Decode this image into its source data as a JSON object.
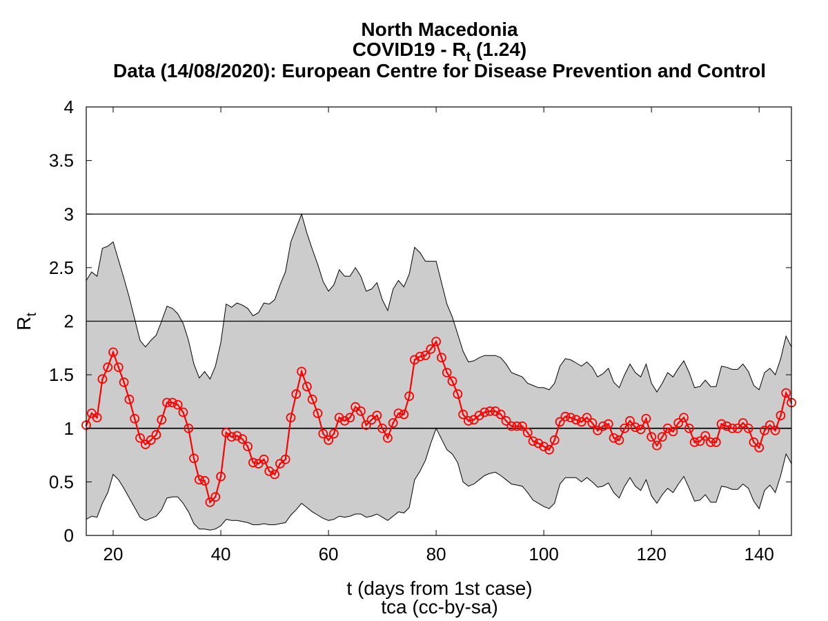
{
  "chart_data": {
    "type": "line",
    "title_lines": {
      "line1": "North Macedonia",
      "line2_prefix": "COVID19 - R",
      "line2_sub": "t",
      "line2_suffix": " (1.24)",
      "line3": "Data (14/08/2020): European Centre for Disease Prevention and Control"
    },
    "xlabel": "t (days from 1st case)",
    "ylabel_main": "R",
    "ylabel_sub": "t",
    "credit": "tca (cc-by-sa)",
    "xlim": [
      15,
      146
    ],
    "ylim": [
      0,
      4
    ],
    "xticks": [
      20,
      40,
      60,
      80,
      100,
      120,
      140
    ],
    "yticks": [
      0,
      0.5,
      1,
      1.5,
      2,
      2.5,
      3,
      3.5,
      4
    ],
    "hlines": [
      1,
      2,
      3
    ],
    "colors": {
      "series": "#ff0000",
      "band": "#cccccc",
      "axis": "#000000"
    },
    "series": [
      {
        "x": [
          15,
          16,
          17,
          18,
          19,
          20,
          21,
          22,
          23,
          24,
          25,
          26,
          27,
          28,
          29,
          30,
          31,
          32,
          33,
          34,
          35,
          36,
          37,
          38,
          39,
          40,
          41,
          42,
          43,
          44,
          45,
          46,
          47,
          48,
          49,
          50,
          51,
          52,
          53,
          54,
          55,
          56,
          57,
          58,
          59,
          60,
          61,
          62,
          63,
          64,
          65,
          66,
          67,
          68,
          69,
          70,
          71,
          72,
          73,
          74,
          75,
          76,
          77,
          78,
          79,
          80,
          81,
          82,
          83,
          84,
          85,
          86,
          87,
          88,
          89,
          90,
          91,
          92,
          93,
          94,
          95,
          96,
          97,
          98,
          99,
          100,
          101,
          102,
          103,
          104,
          105,
          106,
          107,
          108,
          109,
          110,
          111,
          112,
          113,
          114,
          115,
          116,
          117,
          118,
          119,
          120,
          121,
          122,
          123,
          124,
          125,
          126,
          127,
          128,
          129,
          130,
          131,
          132,
          133,
          134,
          135,
          136,
          137,
          138,
          139,
          140,
          141,
          142,
          143,
          144,
          145,
          146
        ],
        "y": [
          1.03,
          1.14,
          1.1,
          1.46,
          1.57,
          1.71,
          1.57,
          1.43,
          1.27,
          1.09,
          0.91,
          0.85,
          0.89,
          0.94,
          1.08,
          1.24,
          1.24,
          1.22,
          1.15,
          1.0,
          0.72,
          0.52,
          0.51,
          0.31,
          0.36,
          0.55,
          0.96,
          0.92,
          0.93,
          0.9,
          0.83,
          0.68,
          0.67,
          0.71,
          0.6,
          0.57,
          0.67,
          0.71,
          1.1,
          1.32,
          1.53,
          1.39,
          1.27,
          1.14,
          0.95,
          0.89,
          0.95,
          1.1,
          1.07,
          1.1,
          1.2,
          1.16,
          1.03,
          1.08,
          1.12,
          1.0,
          0.91,
          1.05,
          1.14,
          1.13,
          1.3,
          1.64,
          1.67,
          1.68,
          1.74,
          1.81,
          1.66,
          1.52,
          1.44,
          1.32,
          1.13,
          1.07,
          1.08,
          1.12,
          1.15,
          1.16,
          1.16,
          1.13,
          1.07,
          1.02,
          1.02,
          1.02,
          0.96,
          0.88,
          0.86,
          0.83,
          0.8,
          0.89,
          1.06,
          1.11,
          1.1,
          1.08,
          1.06,
          1.1,
          1.05,
          0.98,
          1.02,
          1.04,
          0.91,
          0.89,
          1.0,
          1.07,
          1.01,
          0.99,
          1.09,
          0.92,
          0.84,
          0.92,
          1.0,
          0.97,
          1.05,
          1.1,
          1.0,
          0.87,
          0.88,
          0.93,
          0.87,
          0.87,
          1.04,
          1.02,
          1.0,
          1.0,
          1.05,
          1.0,
          0.87,
          0.82,
          0.98,
          1.03,
          0.98,
          1.12,
          1.33,
          1.24
        ]
      }
    ],
    "band": {
      "upper": [
        2.38,
        2.46,
        2.42,
        2.68,
        2.7,
        2.74,
        2.57,
        2.4,
        2.22,
        2.02,
        1.82,
        1.76,
        1.82,
        1.87,
        2.0,
        2.14,
        2.12,
        2.07,
        1.98,
        1.82,
        1.6,
        1.47,
        1.53,
        1.46,
        1.58,
        1.8,
        2.16,
        2.13,
        2.17,
        2.15,
        2.12,
        2.05,
        2.08,
        2.17,
        2.16,
        2.2,
        2.34,
        2.46,
        2.74,
        2.87,
        3.0,
        2.82,
        2.67,
        2.53,
        2.37,
        2.28,
        2.34,
        2.48,
        2.42,
        2.42,
        2.5,
        2.42,
        2.28,
        2.3,
        2.36,
        2.2,
        2.1,
        2.3,
        2.38,
        2.32,
        2.44,
        2.69,
        2.64,
        2.56,
        2.56,
        2.56,
        2.36,
        2.16,
        2.04,
        1.88,
        1.72,
        1.62,
        1.63,
        1.66,
        1.68,
        1.68,
        1.68,
        1.66,
        1.6,
        1.52,
        1.5,
        1.48,
        1.42,
        1.4,
        1.38,
        1.38,
        1.36,
        1.42,
        1.58,
        1.65,
        1.64,
        1.61,
        1.58,
        1.62,
        1.57,
        1.48,
        1.51,
        1.56,
        1.43,
        1.38,
        1.5,
        1.6,
        1.52,
        1.48,
        1.6,
        1.42,
        1.34,
        1.42,
        1.52,
        1.48,
        1.56,
        1.63,
        1.52,
        1.38,
        1.39,
        1.45,
        1.39,
        1.39,
        1.58,
        1.57,
        1.55,
        1.55,
        1.6,
        1.53,
        1.4,
        1.36,
        1.52,
        1.56,
        1.5,
        1.65,
        1.86,
        1.76
      ],
      "lower": [
        0.15,
        0.18,
        0.17,
        0.3,
        0.4,
        0.57,
        0.52,
        0.44,
        0.35,
        0.26,
        0.17,
        0.14,
        0.16,
        0.18,
        0.24,
        0.35,
        0.36,
        0.36,
        0.3,
        0.22,
        0.11,
        0.06,
        0.06,
        0.05,
        0.06,
        0.09,
        0.15,
        0.14,
        0.14,
        0.13,
        0.12,
        0.1,
        0.1,
        0.11,
        0.1,
        0.1,
        0.11,
        0.12,
        0.19,
        0.24,
        0.3,
        0.26,
        0.22,
        0.19,
        0.16,
        0.14,
        0.15,
        0.18,
        0.17,
        0.18,
        0.2,
        0.2,
        0.17,
        0.18,
        0.2,
        0.17,
        0.14,
        0.18,
        0.22,
        0.21,
        0.26,
        0.52,
        0.6,
        0.7,
        0.86,
        1.0,
        0.9,
        0.8,
        0.76,
        0.68,
        0.5,
        0.46,
        0.48,
        0.52,
        0.56,
        0.58,
        0.59,
        0.56,
        0.52,
        0.48,
        0.47,
        0.46,
        0.4,
        0.33,
        0.3,
        0.27,
        0.25,
        0.3,
        0.48,
        0.54,
        0.54,
        0.54,
        0.5,
        0.54,
        0.5,
        0.45,
        0.46,
        0.49,
        0.4,
        0.35,
        0.46,
        0.54,
        0.46,
        0.42,
        0.52,
        0.37,
        0.3,
        0.38,
        0.44,
        0.4,
        0.48,
        0.55,
        0.44,
        0.32,
        0.33,
        0.38,
        0.31,
        0.31,
        0.46,
        0.45,
        0.43,
        0.43,
        0.48,
        0.44,
        0.32,
        0.25,
        0.42,
        0.47,
        0.4,
        0.56,
        0.76,
        0.67
      ]
    }
  }
}
